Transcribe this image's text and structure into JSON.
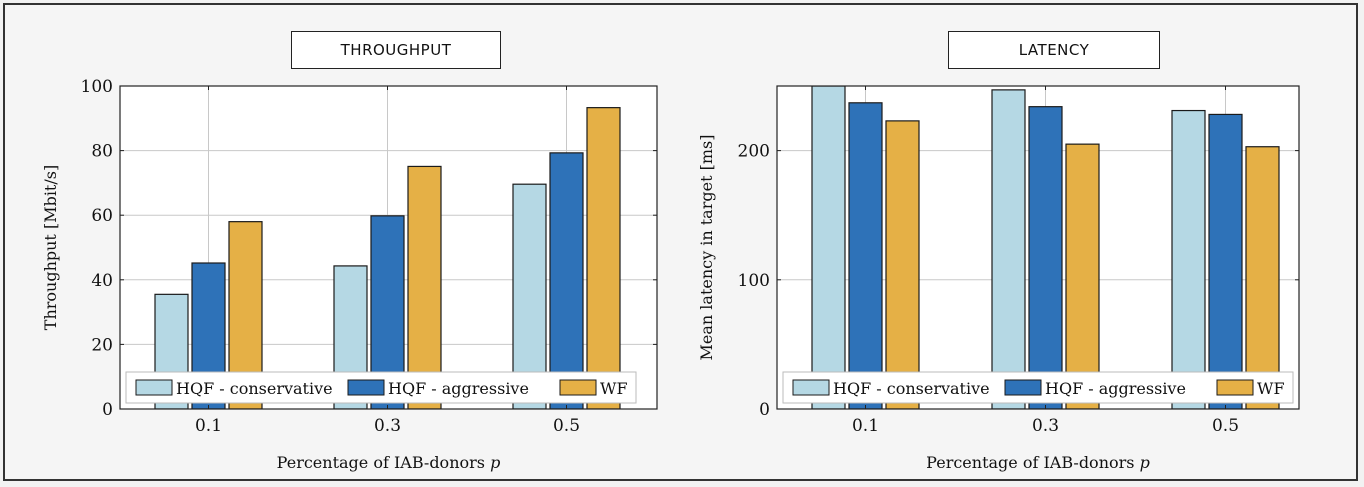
{
  "chart_data": [
    {
      "type": "bar",
      "title": "THROUGHPUT",
      "xlabel": "Percentage of IAB-donors p",
      "ylabel": "Throughput [Mbit/s]",
      "categories": [
        "0.1",
        "0.3",
        "0.5"
      ],
      "ylim": [
        0,
        100
      ],
      "yticks": [
        0,
        20,
        40,
        60,
        80,
        100
      ],
      "grid": true,
      "legend_position": "bottom",
      "series": [
        {
          "name": "HQF - conservative",
          "color": "#b5d8e4",
          "values": [
            35.5,
            44.3,
            69.6
          ]
        },
        {
          "name": "HQF - aggressive",
          "color": "#2e72b8",
          "values": [
            45.2,
            59.8,
            79.3
          ]
        },
        {
          "name": "WF",
          "color": "#e5b046",
          "values": [
            58.0,
            75.1,
            93.3
          ]
        }
      ]
    },
    {
      "type": "bar",
      "title": "LATENCY",
      "xlabel": "Percentage of IAB-donors p",
      "ylabel": "Mean latency in target [ms]",
      "categories": [
        "0.1",
        "0.3",
        "0.5"
      ],
      "ylim": [
        0,
        250
      ],
      "yticks": [
        0,
        100,
        200
      ],
      "grid": true,
      "legend_position": "bottom",
      "series": [
        {
          "name": "HQF - conservative",
          "color": "#b5d8e4",
          "values": [
            250,
            247,
            231
          ]
        },
        {
          "name": "HQF - aggressive",
          "color": "#2e72b8",
          "values": [
            237,
            234,
            228
          ]
        },
        {
          "name": "WF",
          "color": "#e5b046",
          "values": [
            223,
            205,
            203
          ]
        }
      ]
    }
  ]
}
